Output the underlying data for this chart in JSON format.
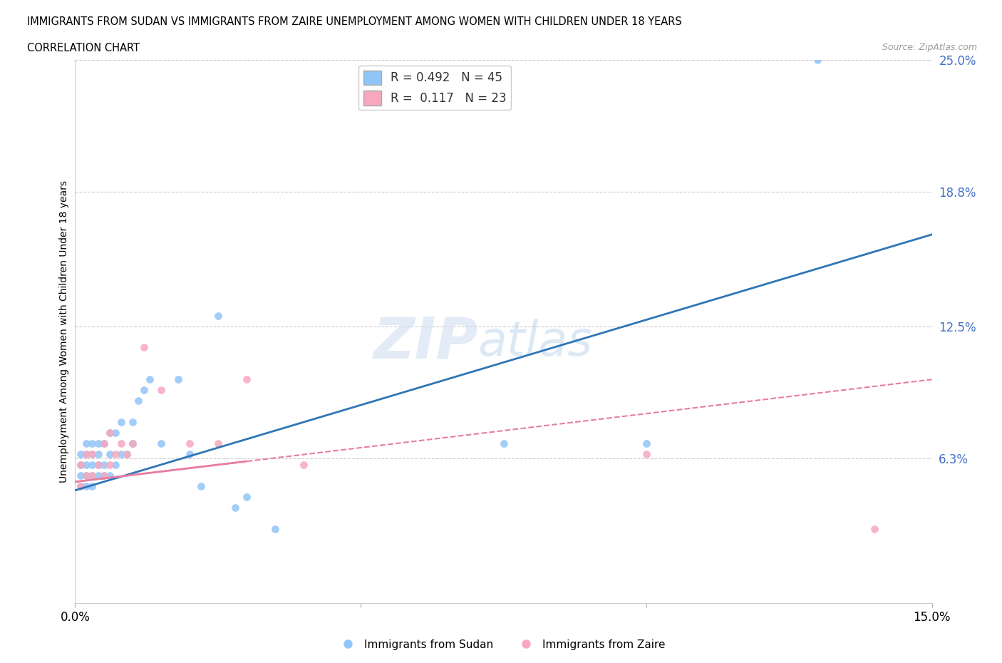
{
  "title_line1": "IMMIGRANTS FROM SUDAN VS IMMIGRANTS FROM ZAIRE UNEMPLOYMENT AMONG WOMEN WITH CHILDREN UNDER 18 YEARS",
  "title_line2": "CORRELATION CHART",
  "source_text": "Source: ZipAtlas.com",
  "ylabel": "Unemployment Among Women with Children Under 18 years",
  "xlim": [
    0.0,
    0.15
  ],
  "ylim": [
    -0.005,
    0.25
  ],
  "ytick_vals": [
    0.063,
    0.125,
    0.188,
    0.25
  ],
  "ytick_labels": [
    "6.3%",
    "12.5%",
    "18.8%",
    "25.0%"
  ],
  "xtick_vals": [
    0.0,
    0.05,
    0.1,
    0.15
  ],
  "xtick_labels": [
    "0.0%",
    "",
    "",
    "15.0%"
  ],
  "sudan_color": "#92C5F7",
  "zaire_color": "#F7A8BE",
  "sudan_line_color": "#2E75B6",
  "zaire_line_color": "#E87CA0",
  "R_sudan": 0.492,
  "N_sudan": 45,
  "R_zaire": 0.117,
  "N_zaire": 23,
  "background_color": "#ffffff",
  "grid_color": "#cccccc",
  "sudan_x": [
    0.001,
    0.001,
    0.001,
    0.001,
    0.002,
    0.002,
    0.002,
    0.002,
    0.002,
    0.003,
    0.003,
    0.003,
    0.003,
    0.003,
    0.004,
    0.004,
    0.004,
    0.004,
    0.005,
    0.005,
    0.005,
    0.006,
    0.006,
    0.006,
    0.007,
    0.007,
    0.008,
    0.008,
    0.009,
    0.01,
    0.01,
    0.011,
    0.012,
    0.013,
    0.015,
    0.018,
    0.02,
    0.022,
    0.025,
    0.028,
    0.03,
    0.035,
    0.075,
    0.1,
    0.13
  ],
  "sudan_y": [
    0.05,
    0.055,
    0.06,
    0.065,
    0.05,
    0.055,
    0.06,
    0.065,
    0.07,
    0.05,
    0.055,
    0.06,
    0.065,
    0.07,
    0.055,
    0.06,
    0.065,
    0.07,
    0.055,
    0.06,
    0.07,
    0.055,
    0.065,
    0.075,
    0.06,
    0.075,
    0.065,
    0.08,
    0.065,
    0.07,
    0.08,
    0.09,
    0.095,
    0.1,
    0.07,
    0.1,
    0.065,
    0.05,
    0.13,
    0.04,
    0.045,
    0.03,
    0.07,
    0.07,
    0.25
  ],
  "zaire_x": [
    0.001,
    0.001,
    0.002,
    0.002,
    0.003,
    0.003,
    0.004,
    0.005,
    0.005,
    0.006,
    0.006,
    0.007,
    0.008,
    0.009,
    0.01,
    0.012,
    0.015,
    0.02,
    0.025,
    0.03,
    0.04,
    0.1,
    0.14
  ],
  "zaire_y": [
    0.05,
    0.06,
    0.055,
    0.065,
    0.055,
    0.065,
    0.06,
    0.055,
    0.07,
    0.06,
    0.075,
    0.065,
    0.07,
    0.065,
    0.07,
    0.115,
    0.095,
    0.07,
    0.07,
    0.1,
    0.06,
    0.065,
    0.03
  ],
  "sudan_reg": [
    0.048,
    0.168
  ],
  "zaire_reg": [
    0.052,
    0.1
  ]
}
